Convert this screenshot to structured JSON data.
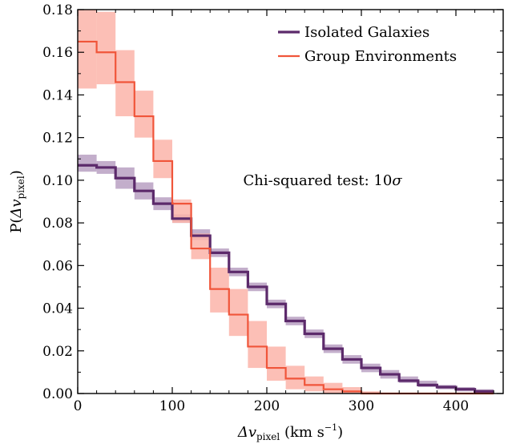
{
  "chart_data": {
    "type": "line",
    "title": "",
    "xlabel": "Δv_pixel (km s^-1)",
    "ylabel": "P(Δv_pixel)",
    "xlim": [
      0,
      450
    ],
    "ylim": [
      0,
      0.18
    ],
    "x_ticks": [
      0,
      100,
      200,
      300,
      400
    ],
    "y_ticks": [
      0.0,
      0.02,
      0.04,
      0.06,
      0.08,
      0.1,
      0.12,
      0.14,
      0.16,
      0.18
    ],
    "grid": false,
    "legend_position": "top-right",
    "annotation": "Chi-squared test: 10σ",
    "step": "post",
    "bin_edges": [
      0,
      20,
      40,
      60,
      80,
      100,
      120,
      140,
      160,
      180,
      200,
      220,
      240,
      260,
      280,
      300,
      320,
      340,
      360,
      380,
      400,
      420,
      440
    ],
    "series": [
      {
        "name": "Isolated Galaxies",
        "color": "#5c2a6b",
        "band_color": "#b8a0c2",
        "values": [
          0.107,
          0.106,
          0.101,
          0.095,
          0.089,
          0.082,
          0.074,
          0.066,
          0.057,
          0.05,
          0.042,
          0.034,
          0.028,
          0.021,
          0.016,
          0.012,
          0.009,
          0.006,
          0.004,
          0.003,
          0.002,
          0.001
        ],
        "lower": [
          0.104,
          0.103,
          0.096,
          0.091,
          0.086,
          0.08,
          0.072,
          0.064,
          0.055,
          0.048,
          0.04,
          0.032,
          0.026,
          0.019,
          0.014,
          0.01,
          0.007,
          0.005,
          0.003,
          0.002,
          0.001,
          0.0
        ],
        "upper": [
          0.112,
          0.109,
          0.106,
          0.099,
          0.092,
          0.084,
          0.077,
          0.068,
          0.059,
          0.052,
          0.044,
          0.036,
          0.03,
          0.023,
          0.018,
          0.014,
          0.011,
          0.008,
          0.006,
          0.004,
          0.003,
          0.002
        ]
      },
      {
        "name": "Group Environments",
        "color": "#f0553a",
        "band_color": "#fbb4a9",
        "values": [
          0.165,
          0.16,
          0.146,
          0.13,
          0.109,
          0.089,
          0.068,
          0.049,
          0.037,
          0.022,
          0.012,
          0.007,
          0.004,
          0.002,
          0.001,
          0.0,
          0.0,
          0.0,
          0.0,
          0.0,
          0.0,
          0.0
        ],
        "lower": [
          0.143,
          0.145,
          0.13,
          0.12,
          0.101,
          0.08,
          0.063,
          0.038,
          0.027,
          0.012,
          0.006,
          0.002,
          0.001,
          0.0,
          0.0,
          0.0,
          0.0,
          0.0,
          0.0,
          0.0,
          0.0,
          0.0
        ],
        "upper": [
          0.18,
          0.179,
          0.161,
          0.142,
          0.119,
          0.091,
          0.075,
          0.059,
          0.049,
          0.034,
          0.022,
          0.013,
          0.008,
          0.005,
          0.003,
          0.001,
          0.0,
          0.0,
          0.0,
          0.0,
          0.0,
          0.0
        ]
      }
    ]
  }
}
